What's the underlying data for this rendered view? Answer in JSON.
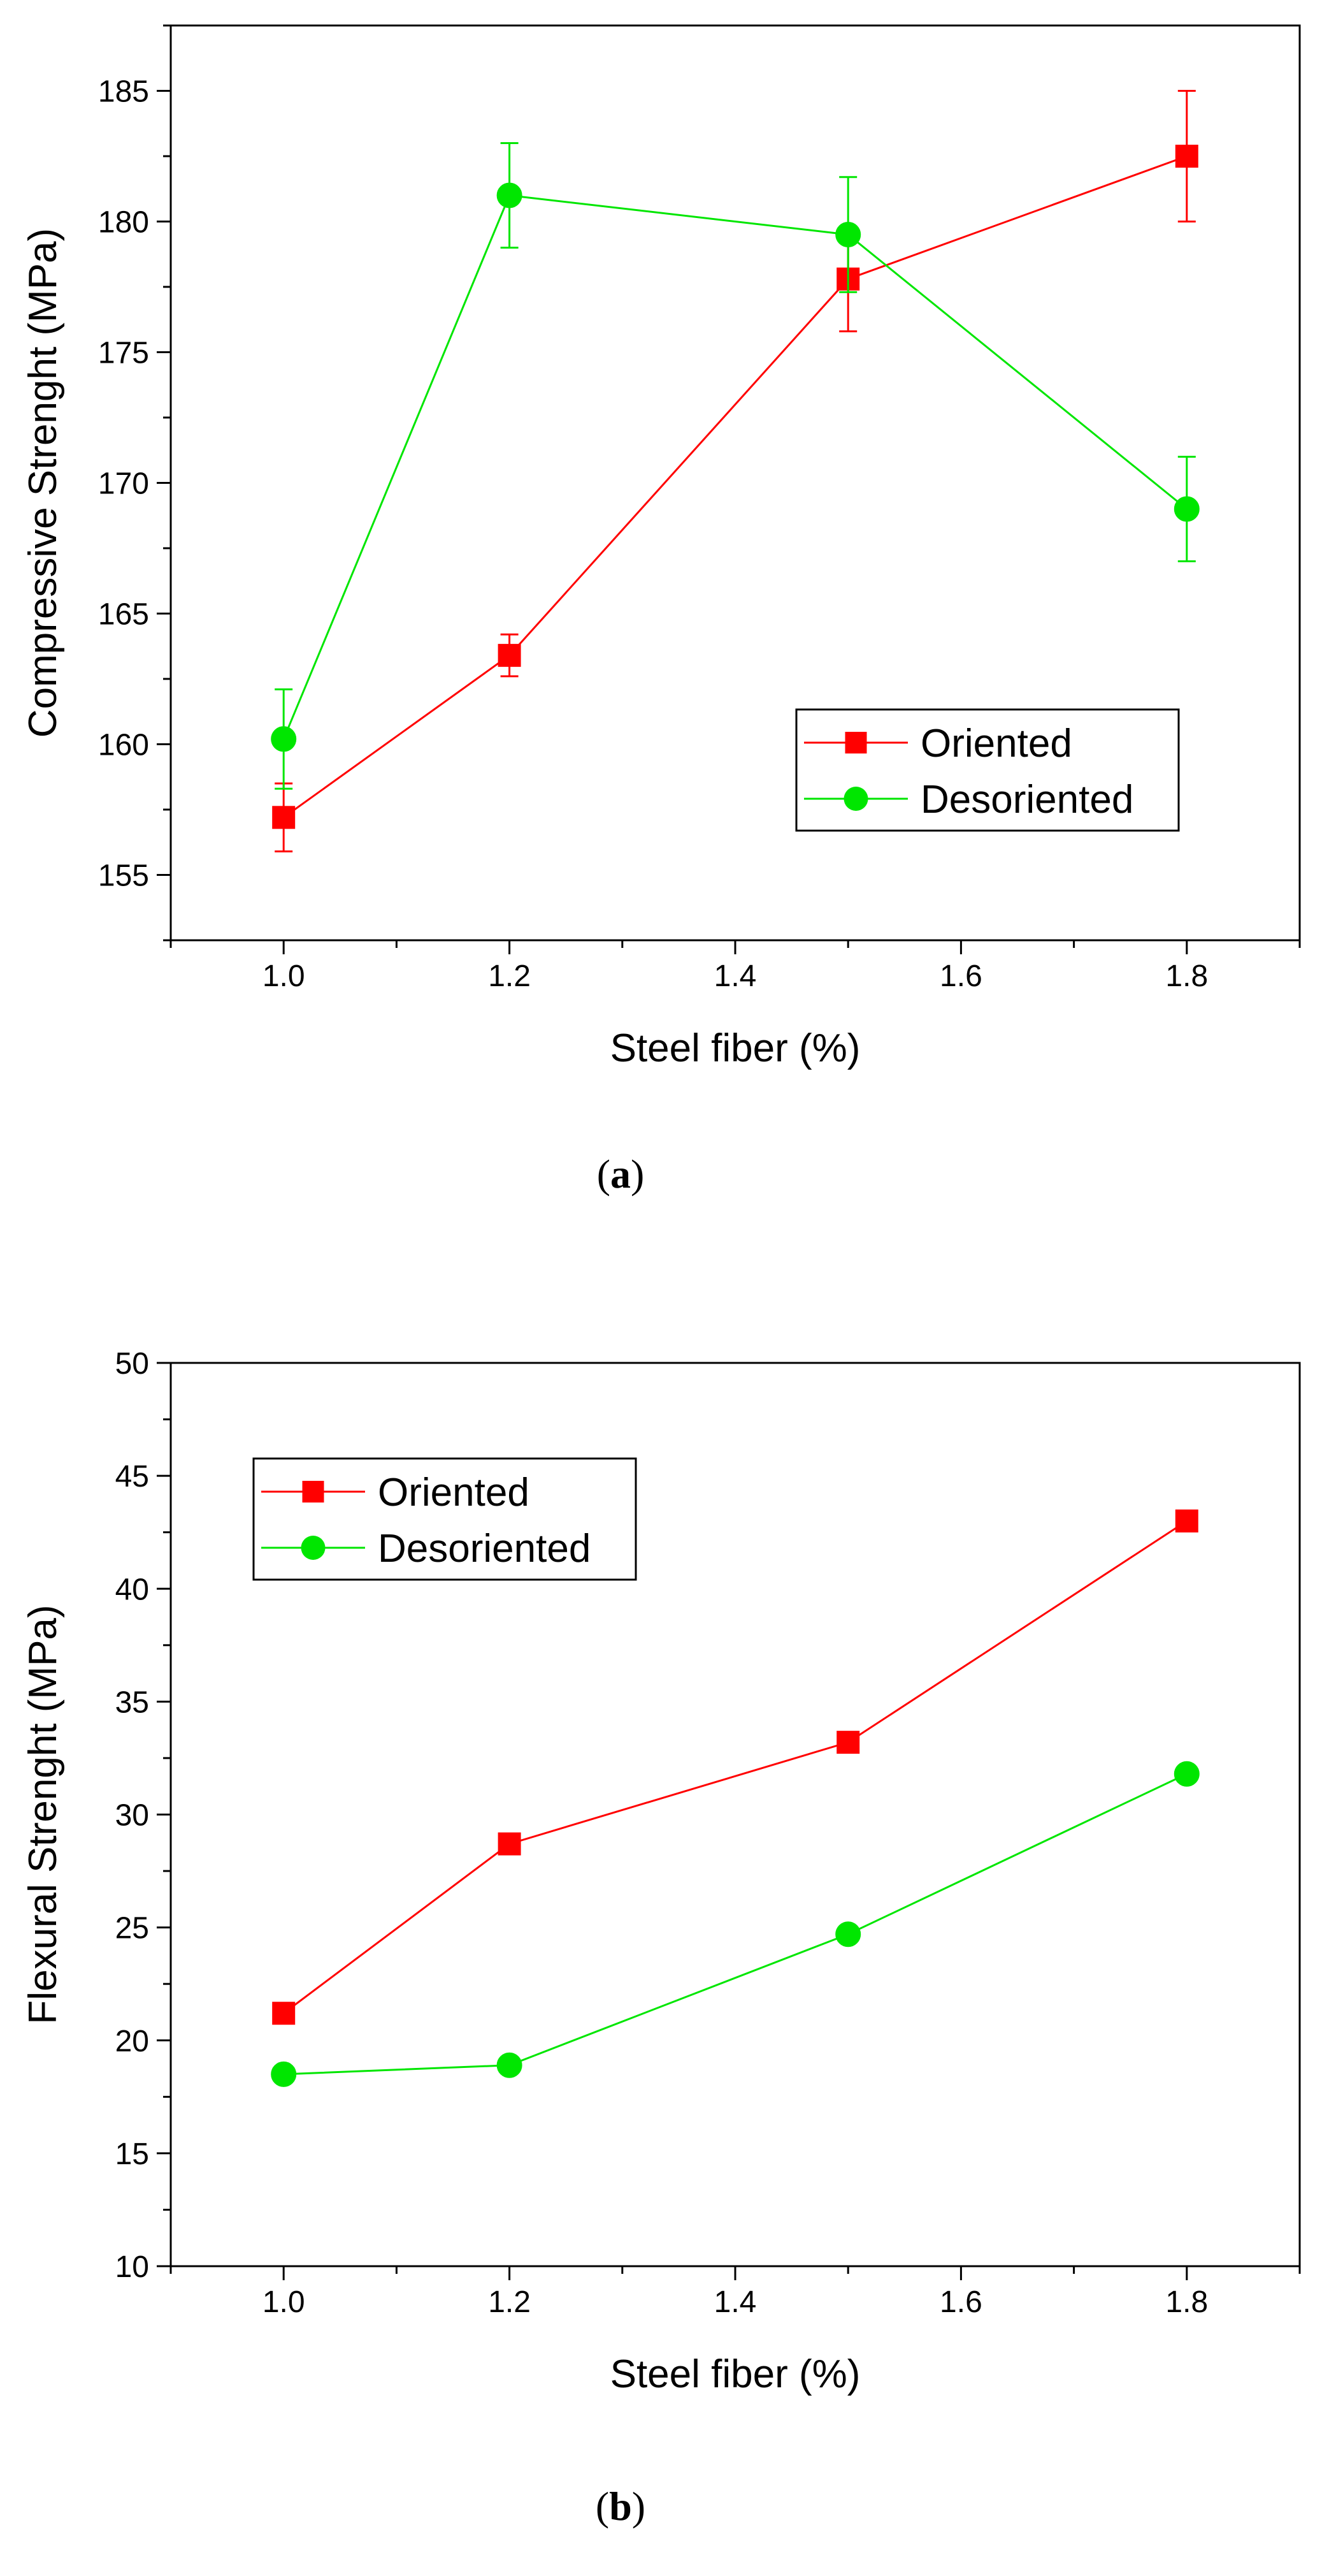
{
  "figure": {
    "panels": [
      {
        "caption_letter": "a",
        "chart_key": 0
      },
      {
        "caption_letter": "b",
        "chart_key": 1
      }
    ]
  },
  "chart_data": [
    {
      "type": "line",
      "title": "",
      "xlabel": "Steel fiber (%)",
      "ylabel": "Compressive Strenght (MPa)",
      "xlim": [
        0.9,
        1.9
      ],
      "ylim": [
        152.5,
        187.5
      ],
      "xticks": [
        1.0,
        1.2,
        1.4,
        1.6,
        1.8
      ],
      "xtick_labels": [
        "1.0",
        "1.2",
        "1.4",
        "1.6",
        "1.8"
      ],
      "yticks": [
        155,
        160,
        165,
        170,
        175,
        180,
        185
      ],
      "ytick_labels": [
        "155",
        "160",
        "165",
        "170",
        "175",
        "180",
        "185"
      ],
      "grid": false,
      "legend_position": "bottom-right",
      "series": [
        {
          "name": "Oriented",
          "color": "#ff0000",
          "marker": "square",
          "x": [
            1.0,
            1.2,
            1.5,
            1.8
          ],
          "y": [
            157.2,
            163.4,
            177.8,
            182.5
          ],
          "err": [
            1.3,
            0.8,
            2.0,
            2.5
          ]
        },
        {
          "name": "Desoriented",
          "color": "#00e600",
          "marker": "circle",
          "x": [
            1.0,
            1.2,
            1.5,
            1.8
          ],
          "y": [
            160.2,
            181.0,
            179.5,
            169.0
          ],
          "err": [
            1.9,
            2.0,
            2.2,
            2.0
          ]
        }
      ]
    },
    {
      "type": "line",
      "title": "",
      "xlabel": "Steel fiber (%)",
      "ylabel": "Flexural Strenght (MPa)",
      "xlim": [
        0.9,
        1.9
      ],
      "ylim": [
        10,
        50
      ],
      "xticks": [
        1.0,
        1.2,
        1.4,
        1.6,
        1.8
      ],
      "xtick_labels": [
        "1.0",
        "1.2",
        "1.4",
        "1.6",
        "1.8"
      ],
      "yticks": [
        10,
        15,
        20,
        25,
        30,
        35,
        40,
        45,
        50
      ],
      "ytick_labels": [
        "10",
        "15",
        "20",
        "25",
        "30",
        "35",
        "40",
        "45",
        "50"
      ],
      "grid": false,
      "legend_position": "top-left",
      "series": [
        {
          "name": "Oriented",
          "color": "#ff0000",
          "marker": "square",
          "x": [
            1.0,
            1.2,
            1.5,
            1.8
          ],
          "y": [
            21.2,
            28.7,
            33.2,
            43.0
          ]
        },
        {
          "name": "Desoriented",
          "color": "#00e600",
          "marker": "circle",
          "x": [
            1.0,
            1.2,
            1.5,
            1.8
          ],
          "y": [
            18.5,
            18.9,
            24.7,
            31.8
          ]
        }
      ]
    }
  ]
}
